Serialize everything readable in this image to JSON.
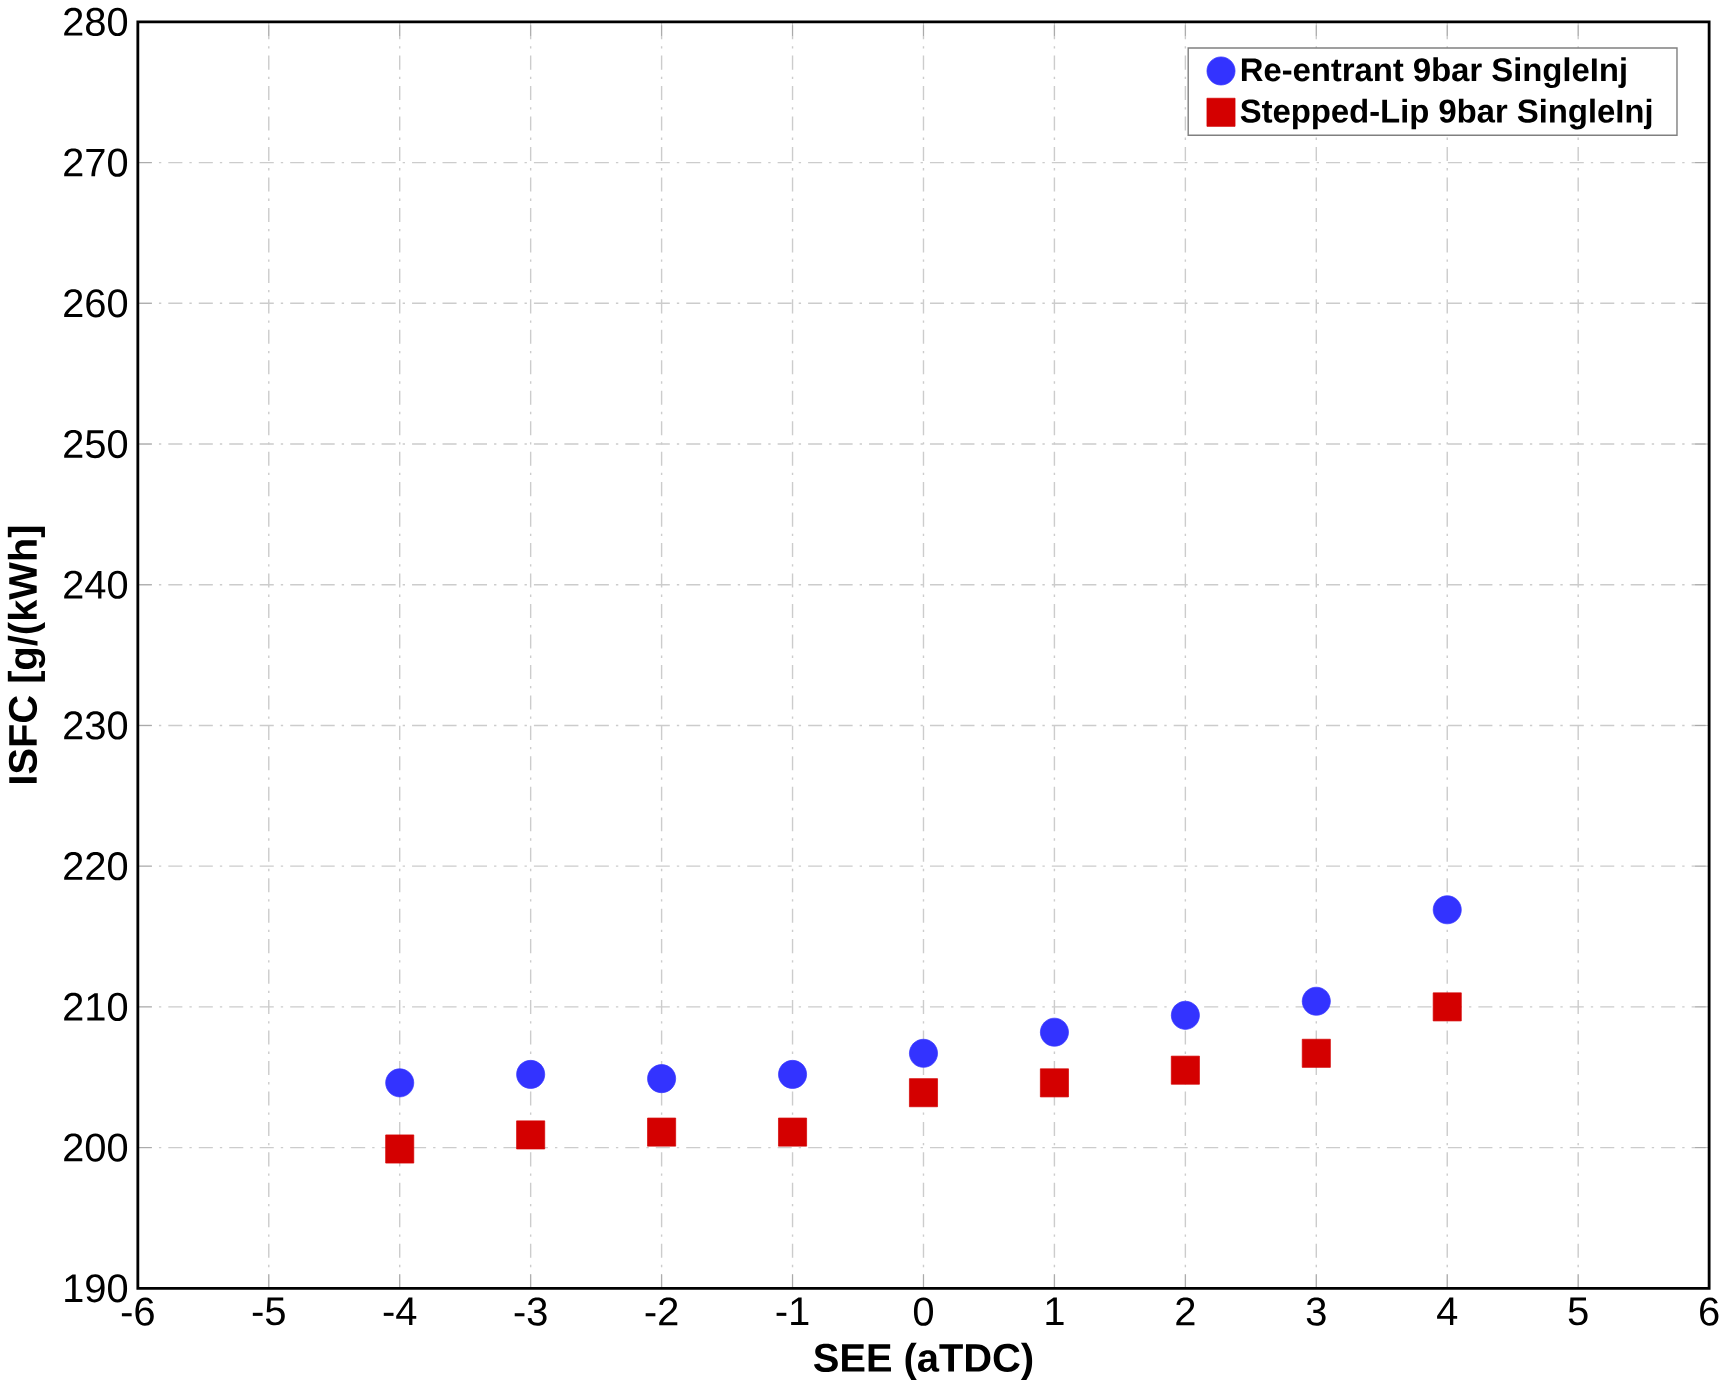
{
  "chart_data": {
    "type": "scatter",
    "xlabel": "SEE (aTDC)",
    "ylabel": "ISFC [g/(kWh]",
    "xlim": [
      -6,
      6
    ],
    "xticks": [
      -6,
      -5,
      -4,
      -3,
      -2,
      -1,
      0,
      1,
      2,
      3,
      4,
      5,
      6
    ],
    "ylim": [
      190,
      280
    ],
    "yticks": [
      190,
      200,
      210,
      220,
      230,
      240,
      250,
      260,
      270,
      280
    ],
    "grid": true,
    "legend": "top right",
    "series": [
      {
        "name": "Re-entrant 9bar SingleInj",
        "color": "#3333ff",
        "marker": "circle",
        "x": [
          -4,
          -3,
          -2,
          -1,
          0,
          1,
          2,
          3,
          4
        ],
        "values": [
          204.6,
          205.2,
          204.9,
          205.2,
          206.7,
          208.2,
          209.4,
          210.4,
          216.9
        ]
      },
      {
        "name": "Stepped-Lip 9bar SingleInj",
        "color": "#d40000",
        "marker": "square",
        "x": [
          -4,
          -3,
          -2,
          -1,
          0,
          1,
          2,
          3,
          4
        ],
        "values": [
          199.9,
          200.9,
          201.1,
          201.1,
          203.9,
          204.6,
          205.5,
          206.7,
          210.0
        ]
      }
    ]
  }
}
